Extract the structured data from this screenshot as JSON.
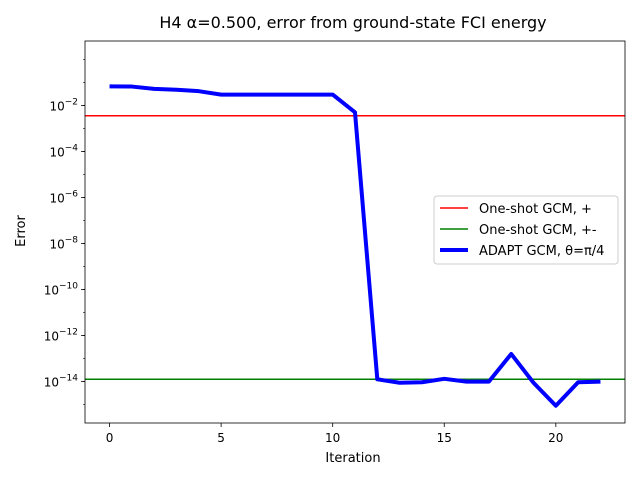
{
  "chart_data": {
    "type": "line",
    "title": "H4 α=0.500, error from ground-state FCI energy",
    "xlabel": "Iteration",
    "ylabel": "Error",
    "xlim": [
      -1.1,
      23.1
    ],
    "ylim_log10": [
      -15.8,
      0.8
    ],
    "yscale": "log",
    "grid": false,
    "x_ticks": [
      0,
      5,
      10,
      15,
      20
    ],
    "y_ticks": [
      {
        "base": "10",
        "exp": "−14",
        "value": -14
      },
      {
        "base": "10",
        "exp": "−12",
        "value": -12
      },
      {
        "base": "10",
        "exp": "−10",
        "value": -10
      },
      {
        "base": "10",
        "exp": "−8",
        "value": -8
      },
      {
        "base": "10",
        "exp": "−6",
        "value": -6
      },
      {
        "base": "10",
        "exp": "−4",
        "value": -4
      },
      {
        "base": "10",
        "exp": "−2",
        "value": -2
      }
    ],
    "hlines": [
      {
        "name": "One-shot GCM, +",
        "log10_value": -2.45,
        "color": "#ff0000"
      },
      {
        "name": "One-shot GCM, +-",
        "log10_value": -13.9,
        "color": "#008000"
      }
    ],
    "series": [
      {
        "name": "ADAPT GCM, θ=π/4",
        "color": "#0000ff",
        "x": [
          0,
          1,
          2,
          3,
          4,
          5,
          6,
          7,
          8,
          9,
          10,
          11,
          12,
          13,
          14,
          15,
          16,
          17,
          18,
          19,
          20,
          21,
          22
        ],
        "log10_y": [
          -1.17,
          -1.18,
          -1.28,
          -1.32,
          -1.38,
          -1.53,
          -1.53,
          -1.53,
          -1.53,
          -1.53,
          -1.53,
          -2.3,
          -13.9,
          -14.05,
          -14.03,
          -13.88,
          -14.0,
          -14.0,
          -12.8,
          -14.05,
          -15.05,
          -14.03,
          -14.0
        ]
      }
    ],
    "legend_position": "center-right"
  }
}
